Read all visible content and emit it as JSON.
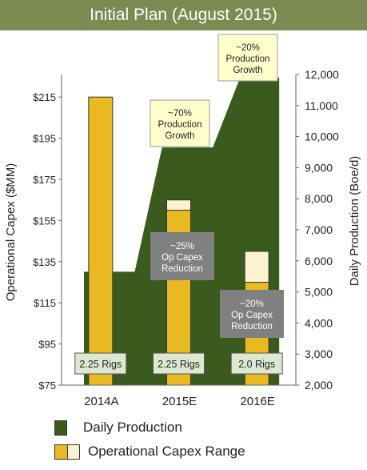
{
  "title": "Initial Plan (August 2015)",
  "colors": {
    "title_bg": "#7b8b52",
    "production": "#3a5a1e",
    "capex": "#e8b923",
    "capex_range": "#fbf3d0",
    "callout_yellow": "#ffffcc",
    "callout_gray": "#808080",
    "rig_box": "#dce8d0"
  },
  "chart_data": {
    "type": "bar",
    "categories": [
      "2014A",
      "2015E",
      "2016E"
    ],
    "left_axis": {
      "label": "Operational Capex ($MM)",
      "ticks": [
        "$75",
        "$95",
        "$115",
        "$135",
        "$155",
        "$175",
        "$195",
        "$215"
      ],
      "tick_values": [
        75,
        95,
        115,
        135,
        155,
        175,
        195,
        215
      ],
      "range": [
        75,
        235
      ]
    },
    "right_axis": {
      "label": "Daily Production (Boe/d)",
      "ticks": [
        "2,000",
        "3,000",
        "4,000",
        "5,000",
        "6,000",
        "7,000",
        "8,000",
        "9,000",
        "10,000",
        "11,000",
        "12,000"
      ],
      "tick_values": [
        2000,
        3000,
        4000,
        5000,
        6000,
        7000,
        8000,
        9000,
        10000,
        11000,
        12000
      ],
      "range": [
        2000,
        12000
      ]
    },
    "production_area": [
      {
        "x": 0.0,
        "value": 5650
      },
      {
        "x": 0.65,
        "value": 5650
      },
      {
        "x": 1.0,
        "value": 9650
      },
      {
        "x": 1.65,
        "value": 9650
      },
      {
        "x": 2.0,
        "value": 11900
      },
      {
        "x": 2.5,
        "value": 11900
      }
    ],
    "capex": [
      {
        "category": "2014A",
        "low": 215,
        "high": 215
      },
      {
        "category": "2015E",
        "low": 160,
        "high": 165
      },
      {
        "category": "2016E",
        "low": 125,
        "high": 140
      }
    ],
    "rigs": [
      "2.25 Rigs",
      "2.25 Rigs",
      "2.0 Rigs"
    ],
    "callouts": [
      {
        "lines": [
          "~70%",
          "Production",
          "Growth"
        ],
        "style": "yellow"
      },
      {
        "lines": [
          "~20%",
          "Production",
          "Growth"
        ],
        "style": "yellow"
      },
      {
        "lines": [
          "~25%",
          "Op Capex",
          "Reduction"
        ],
        "style": "gray"
      },
      {
        "lines": [
          "~20%",
          "Op Capex",
          "Reduction"
        ],
        "style": "gray"
      }
    ]
  },
  "legend": {
    "production_label": "Daily Production",
    "capex_label": "Operational Capex Range"
  }
}
